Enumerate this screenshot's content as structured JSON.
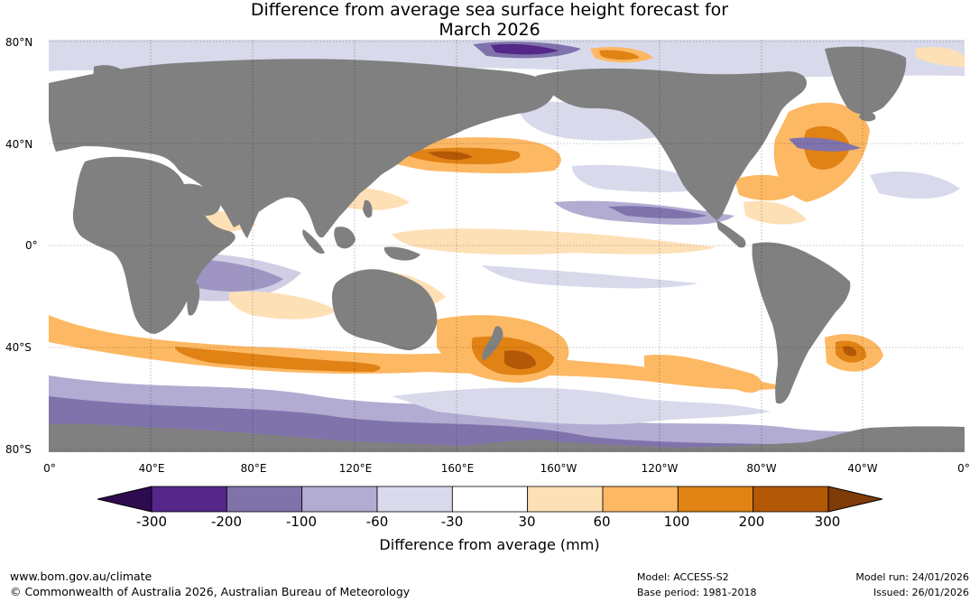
{
  "title": {
    "line1": "Difference from average sea surface height forecast for",
    "line2": "March 2026"
  },
  "axes": {
    "lat_labels": [
      "80°N",
      "40°N",
      "0°",
      "40°S",
      "80°S"
    ],
    "lon_labels": [
      "0°",
      "40°E",
      "80°E",
      "120°E",
      "160°E",
      "160°W",
      "120°W",
      "80°W",
      "40°W",
      "0°"
    ]
  },
  "legend": {
    "label": "Difference from average (mm)",
    "ticks": [
      "-300",
      "-200",
      "-100",
      "-60",
      "-30",
      "30",
      "60",
      "100",
      "200",
      "300"
    ],
    "colors": [
      "#2e0a4f",
      "#542788",
      "#8073ac",
      "#b2abd2",
      "#d8daeb",
      "#ffffff",
      "#fee0b6",
      "#fdb863",
      "#e08214",
      "#b35806",
      "#7f3b08"
    ]
  },
  "colors": {
    "land": "#808080",
    "ocean_neutral": "#ffffff"
  },
  "footer": {
    "url": "www.bom.gov.au/climate",
    "copyright": "© Commonwealth of Australia 2026, Australian Bureau of Meteorology",
    "model": "Model: ACCESS-S2",
    "base_period": "Base period: 1981-2018",
    "model_run": "Model run: 24/01/2026",
    "issued": "Issued: 26/01/2026"
  }
}
